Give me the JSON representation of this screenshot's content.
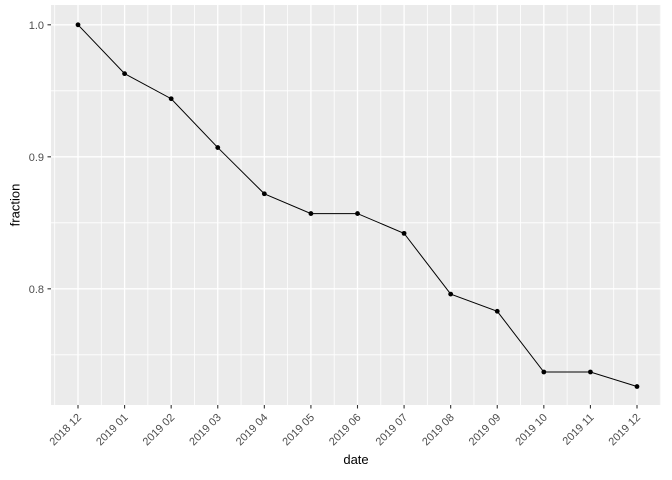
{
  "chart_data": {
    "type": "line",
    "title": "",
    "xlabel": "date",
    "ylabel": "fraction",
    "x": [
      "2018 12",
      "2019 01",
      "2019 02",
      "2019 03",
      "2019 04",
      "2019 05",
      "2019 06",
      "2019 07",
      "2019 08",
      "2019 09",
      "2019 10",
      "2019 11",
      "2019 12"
    ],
    "values": [
      1.0,
      0.963,
      0.944,
      0.907,
      0.872,
      0.857,
      0.857,
      0.842,
      0.796,
      0.783,
      0.737,
      0.737,
      0.726
    ],
    "ylim": [
      0.712,
      1.015
    ],
    "yticks": [
      0.8,
      0.9,
      1.0
    ],
    "ytick_labels": [
      "0.8",
      "0.9",
      "1.0"
    ],
    "yminor": [
      0.75,
      0.85,
      0.95
    ],
    "x_tick_angle": 45,
    "grid": "major+minor",
    "legend": "none",
    "style": {
      "outer_bg": "#FFFFFF",
      "panel_bg": "#EBEBEB",
      "grid_color": "#FFFFFF",
      "line_color": "#000000",
      "point_color": "#000000",
      "tick_color": "#333333",
      "tick_label_color": "#4D4D4D",
      "axis_title_color": "#000000"
    }
  }
}
